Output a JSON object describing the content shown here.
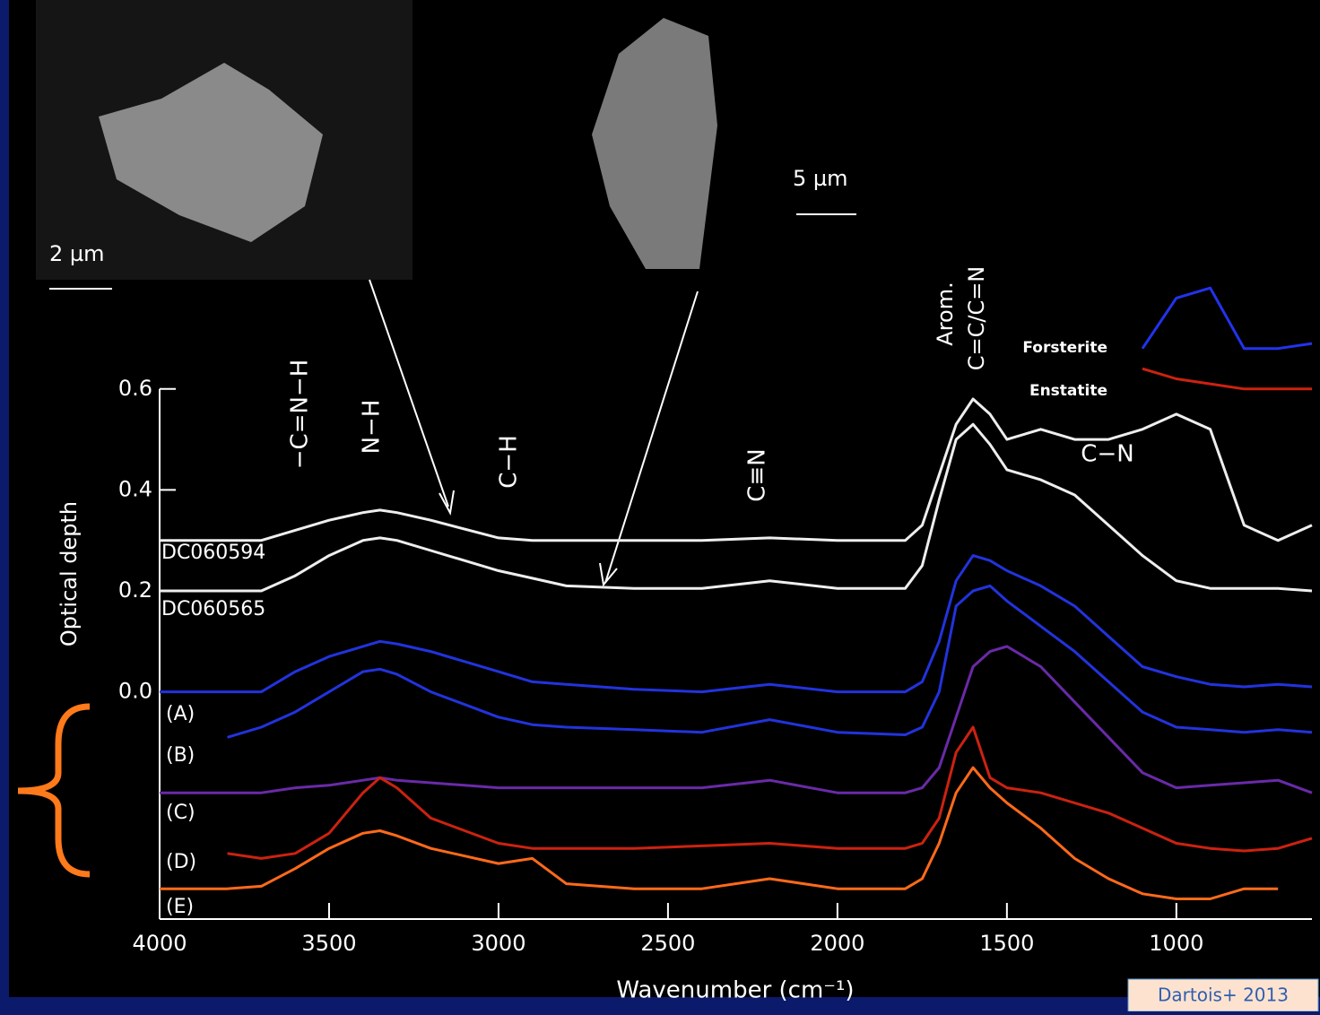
{
  "chart_data": {
    "type": "line",
    "x_label": "Wavenumber (cm⁻¹)",
    "y_label": "Optical depth",
    "xlim": [
      4000,
      600
    ],
    "ylim": [
      -0.45,
      0.85
    ],
    "xticks": [
      4000,
      3500,
      3000,
      2500,
      2000,
      1500,
      1000
    ],
    "yticks": [
      {
        "value": 0,
        "label": "0.0"
      },
      0.2,
      0.4,
      0.6
    ],
    "x": [
      4000,
      3800,
      3700,
      3600,
      3500,
      3400,
      3350,
      3300,
      3200,
      3000,
      2900,
      2800,
      2600,
      2400,
      2200,
      2000,
      1800,
      1750,
      1700,
      1650,
      1600,
      1550,
      1500,
      1400,
      1300,
      1200,
      1100,
      1000,
      900,
      800,
      700,
      600
    ],
    "series": [
      {
        "name": "DC060594",
        "color": "#eeeeee",
        "values": [
          0.3,
          0.3,
          0.3,
          0.32,
          0.34,
          0.355,
          0.36,
          0.355,
          0.34,
          0.305,
          0.3,
          0.3,
          0.3,
          0.3,
          0.305,
          0.3,
          0.3,
          0.33,
          0.43,
          0.53,
          0.58,
          0.55,
          0.5,
          0.52,
          0.5,
          0.5,
          0.52,
          0.55,
          0.52,
          0.33,
          0.3,
          0.33
        ]
      },
      {
        "name": "DC060565",
        "color": "#eeeeee",
        "values": [
          0.2,
          0.2,
          0.2,
          0.23,
          0.27,
          0.3,
          0.305,
          0.3,
          0.28,
          0.24,
          0.225,
          0.21,
          0.205,
          0.205,
          0.22,
          0.205,
          0.205,
          0.25,
          0.38,
          0.5,
          0.53,
          0.49,
          0.44,
          0.42,
          0.39,
          0.33,
          0.27,
          0.22,
          0.205,
          0.205,
          0.205,
          0.2
        ]
      },
      {
        "name": "(A)",
        "color": "#2233dd",
        "values": [
          0.0,
          0.0,
          0.0,
          0.04,
          0.07,
          0.09,
          0.1,
          0.095,
          0.08,
          0.04,
          0.02,
          0.015,
          0.005,
          0.0,
          0.015,
          0.0,
          0.0,
          0.02,
          0.1,
          0.22,
          0.27,
          0.26,
          0.24,
          0.21,
          0.17,
          0.11,
          0.05,
          0.03,
          0.015,
          0.01,
          0.015,
          0.01
        ]
      },
      {
        "name": "(B)",
        "color": "#2233dd",
        "values": [
          null,
          -0.09,
          -0.07,
          -0.04,
          0.0,
          0.04,
          0.045,
          0.035,
          0.0,
          -0.05,
          -0.065,
          -0.07,
          -0.075,
          -0.08,
          -0.055,
          -0.08,
          -0.085,
          -0.07,
          0.0,
          0.17,
          0.2,
          0.21,
          0.18,
          0.13,
          0.08,
          0.02,
          -0.04,
          -0.07,
          -0.075,
          -0.08,
          -0.075,
          -0.08
        ]
      },
      {
        "name": "(C)",
        "color": "#6a2aa8",
        "values": [
          -0.2,
          -0.2,
          -0.2,
          -0.19,
          -0.185,
          -0.175,
          -0.17,
          -0.175,
          -0.18,
          -0.19,
          -0.19,
          -0.19,
          -0.19,
          -0.19,
          -0.175,
          -0.2,
          -0.2,
          -0.19,
          -0.15,
          -0.05,
          0.05,
          0.08,
          0.09,
          0.05,
          -0.02,
          -0.09,
          -0.16,
          -0.19,
          -0.185,
          -0.18,
          -0.175,
          -0.2
        ]
      },
      {
        "name": "(D)",
        "color": "#cc2211",
        "values": [
          null,
          -0.32,
          -0.33,
          -0.32,
          -0.28,
          -0.2,
          -0.17,
          -0.19,
          -0.25,
          -0.3,
          -0.31,
          -0.31,
          -0.31,
          -0.305,
          -0.3,
          -0.31,
          -0.31,
          -0.3,
          -0.25,
          -0.12,
          -0.07,
          -0.17,
          -0.19,
          -0.2,
          -0.22,
          -0.24,
          -0.27,
          -0.3,
          -0.31,
          -0.315,
          -0.31,
          -0.29
        ]
      },
      {
        "name": "(E)",
        "color": "#ff6a1a",
        "values": [
          -0.39,
          -0.39,
          -0.385,
          -0.35,
          -0.31,
          -0.28,
          -0.275,
          -0.285,
          -0.31,
          -0.34,
          -0.33,
          -0.38,
          -0.39,
          -0.39,
          -0.37,
          -0.39,
          -0.39,
          -0.37,
          -0.3,
          -0.2,
          -0.15,
          -0.19,
          -0.22,
          -0.27,
          -0.33,
          -0.37,
          -0.4,
          -0.41,
          -0.41,
          -0.39,
          -0.39,
          null
        ]
      },
      {
        "name": "Forsterite",
        "color": "#2233ee",
        "values": [
          null,
          null,
          null,
          null,
          null,
          null,
          null,
          null,
          null,
          null,
          null,
          null,
          null,
          null,
          null,
          null,
          null,
          null,
          null,
          null,
          null,
          null,
          null,
          null,
          null,
          null,
          0.68,
          0.78,
          0.8,
          0.68,
          0.68,
          0.69
        ]
      },
      {
        "name": "Enstatite",
        "color": "#cc2211",
        "values": [
          null,
          null,
          null,
          null,
          null,
          null,
          null,
          null,
          null,
          null,
          null,
          null,
          null,
          null,
          null,
          null,
          null,
          null,
          null,
          null,
          null,
          null,
          null,
          null,
          null,
          null,
          0.64,
          0.62,
          0.61,
          0.6,
          0.6,
          0.6
        ]
      }
    ],
    "annotations": [
      "−C=N−H",
      "N−H",
      "C−H",
      "C≡N",
      "Arom.",
      "C=C/C=N",
      "C−N"
    ]
  },
  "scale_bars": [
    "2 µm",
    "5 µm"
  ],
  "citation": "Dartois+ 2013"
}
